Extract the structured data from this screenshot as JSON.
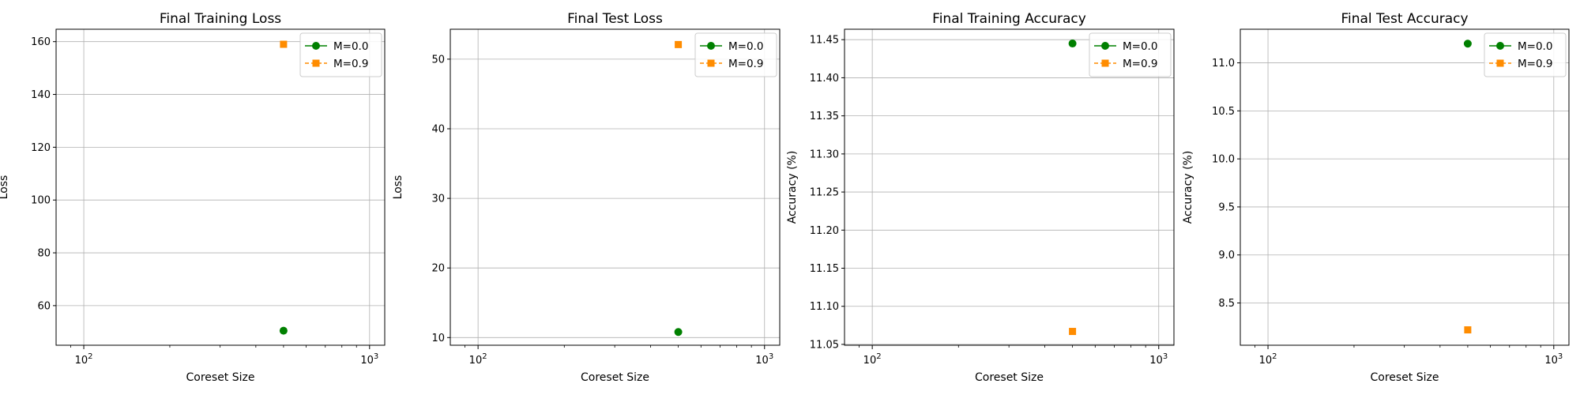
{
  "chart_data": [
    {
      "type": "line",
      "title": "Final Training Loss",
      "xlabel": "Coreset Size",
      "ylabel": "Loss",
      "xscale": "log",
      "xlim": [
        80,
        1130
      ],
      "ylim": [
        45,
        164.7
      ],
      "xticks": [
        100,
        1000
      ],
      "yticks": [
        60,
        80,
        100,
        120,
        140,
        160
      ],
      "ytick_labels": [
        "60",
        "80",
        "100",
        "120",
        "140",
        "160"
      ],
      "grid": true,
      "legend_position": "top-right",
      "series": [
        {
          "name": "M=0.0",
          "x": [
            500
          ],
          "y": [
            50.5
          ],
          "color": "#008000",
          "marker": "circle",
          "linestyle": "solid"
        },
        {
          "name": "M=0.9",
          "x": [
            500
          ],
          "y": [
            159.0
          ],
          "color": "#ff8c00",
          "marker": "square",
          "linestyle": "dashed"
        }
      ]
    },
    {
      "type": "line",
      "title": "Final Test Loss",
      "xlabel": "Coreset Size",
      "ylabel": "Loss",
      "xscale": "log",
      "xlim": [
        80,
        1130
      ],
      "ylim": [
        8.9,
        54.3
      ],
      "xticks": [
        100,
        1000
      ],
      "yticks": [
        10,
        20,
        30,
        40,
        50
      ],
      "ytick_labels": [
        "10",
        "20",
        "30",
        "40",
        "50"
      ],
      "grid": true,
      "legend_position": "top-right",
      "series": [
        {
          "name": "M=0.0",
          "x": [
            500
          ],
          "y": [
            10.8
          ],
          "color": "#008000",
          "marker": "circle",
          "linestyle": "solid"
        },
        {
          "name": "M=0.9",
          "x": [
            500
          ],
          "y": [
            52.1
          ],
          "color": "#ff8c00",
          "marker": "square",
          "linestyle": "dashed"
        }
      ]
    },
    {
      "type": "line",
      "title": "Final Training Accuracy",
      "xlabel": "Coreset Size",
      "ylabel": "Accuracy (%)",
      "xscale": "log",
      "xlim": [
        80,
        1130
      ],
      "ylim": [
        11.0489,
        11.4637
      ],
      "xticks": [
        100,
        1000
      ],
      "yticks": [
        11.05,
        11.1,
        11.15,
        11.2,
        11.25,
        11.3,
        11.35,
        11.4,
        11.45
      ],
      "ytick_labels": [
        "11.05",
        "11.10",
        "11.15",
        "11.20",
        "11.25",
        "11.30",
        "11.35",
        "11.40",
        "11.45"
      ],
      "grid": true,
      "legend_position": "top-right",
      "series": [
        {
          "name": "M=0.0",
          "x": [
            500
          ],
          "y": [
            11.445
          ],
          "color": "#008000",
          "marker": "circle",
          "linestyle": "solid"
        },
        {
          "name": "M=0.9",
          "x": [
            500
          ],
          "y": [
            11.067
          ],
          "color": "#ff8c00",
          "marker": "square",
          "linestyle": "dashed"
        }
      ]
    },
    {
      "type": "line",
      "title": "Final Test Accuracy",
      "xlabel": "Coreset Size",
      "ylabel": "Accuracy (%)",
      "xscale": "log",
      "xlim": [
        80,
        1130
      ],
      "ylim": [
        8.06,
        11.35
      ],
      "xticks": [
        100,
        1000
      ],
      "yticks": [
        8.5,
        9.0,
        9.5,
        10.0,
        10.5,
        11.0
      ],
      "ytick_labels": [
        "8.5",
        "9.0",
        "9.5",
        "10.0",
        "10.5",
        "11.0"
      ],
      "grid": true,
      "legend_position": "top-right",
      "series": [
        {
          "name": "M=0.0",
          "x": [
            500
          ],
          "y": [
            11.2
          ],
          "color": "#008000",
          "marker": "circle",
          "linestyle": "solid"
        },
        {
          "name": "M=0.9",
          "x": [
            500
          ],
          "y": [
            8.22
          ],
          "color": "#ff8c00",
          "marker": "square",
          "linestyle": "dashed"
        }
      ]
    }
  ]
}
